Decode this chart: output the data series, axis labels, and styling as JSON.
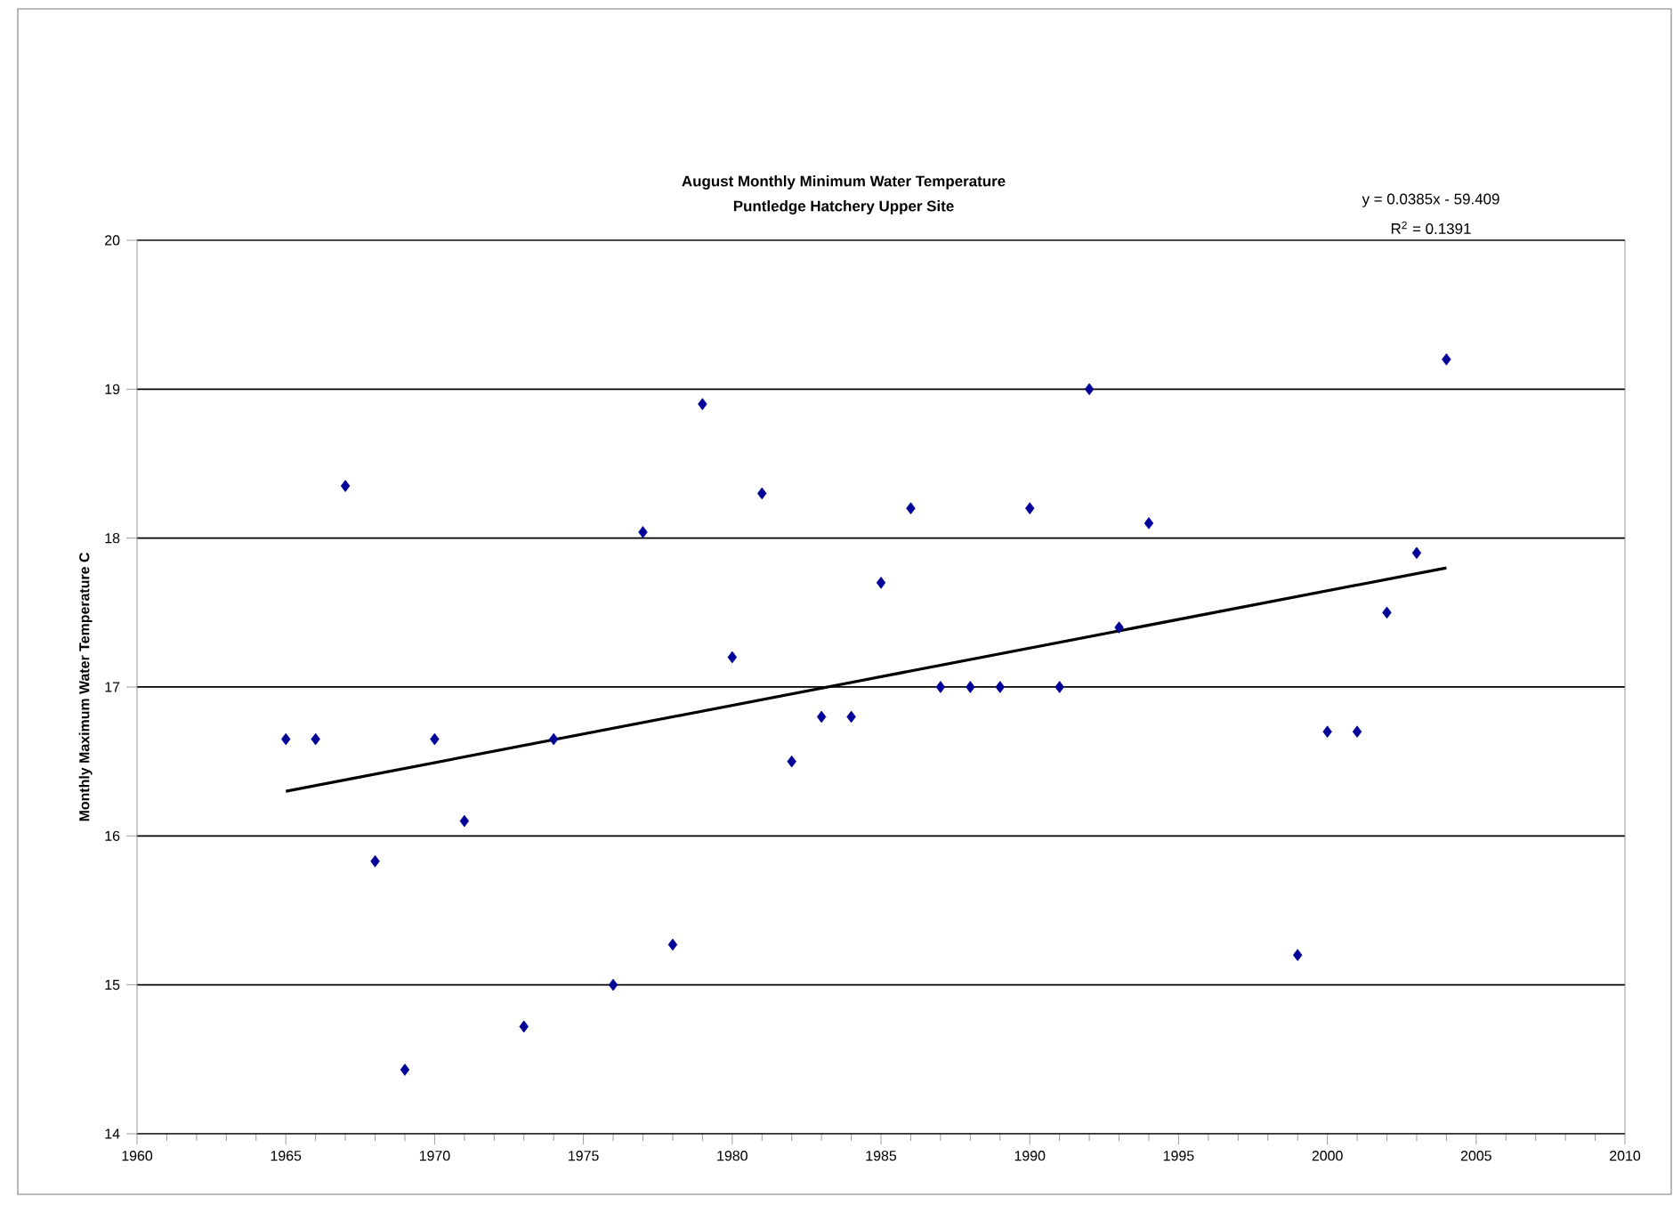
{
  "chart_data": {
    "type": "scatter",
    "title": "August Monthly Minimum Water Temperature",
    "subtitle": "Puntledge Hatchery Upper Site",
    "ylabel": "Monthly Maximum Water Temperature C",
    "annotations": [
      "y = 0.0385x - 59.409",
      "R$^{2}$ = 0.1391"
    ],
    "xlim": [
      1960,
      2010
    ],
    "xticks": [
      1960,
      1965,
      1970,
      1975,
      1980,
      1985,
      1990,
      1995,
      2000,
      2005,
      2010
    ],
    "ylim": [
      14,
      20
    ],
    "yticks": [
      14,
      15,
      16,
      17,
      18,
      19,
      20
    ],
    "grid": "y",
    "marker": "diamond",
    "series": [
      {
        "color": "#000099",
        "x": [
          1965,
          1966,
          1967,
          1968,
          1969,
          1970,
          1971,
          1973,
          1974,
          1976,
          1977,
          1978,
          1979,
          1980,
          1981,
          1982,
          1983,
          1984,
          1985,
          1986,
          1987,
          1988,
          1989,
          1990,
          1991,
          1992,
          1993,
          1994,
          1999,
          2000,
          2001,
          2002,
          2003,
          2004
        ],
        "values": [
          16.65,
          16.65,
          18.35,
          15.83,
          14.43,
          16.65,
          16.1,
          14.72,
          16.65,
          15.0,
          18.04,
          15.27,
          18.9,
          17.2,
          18.3,
          16.5,
          16.8,
          16.8,
          17.7,
          18.2,
          17.0,
          17.0,
          17.0,
          18.2,
          17.0,
          19.0,
          17.4,
          18.1,
          15.2,
          16.7,
          16.7,
          17.5,
          17.9,
          19.2
        ]
      },
      {
        "type": "line",
        "color": "#000000",
        "marker": "none",
        "x": [
          1965,
          2004
        ],
        "values": [
          16.3,
          17.8
        ]
      }
    ]
  }
}
